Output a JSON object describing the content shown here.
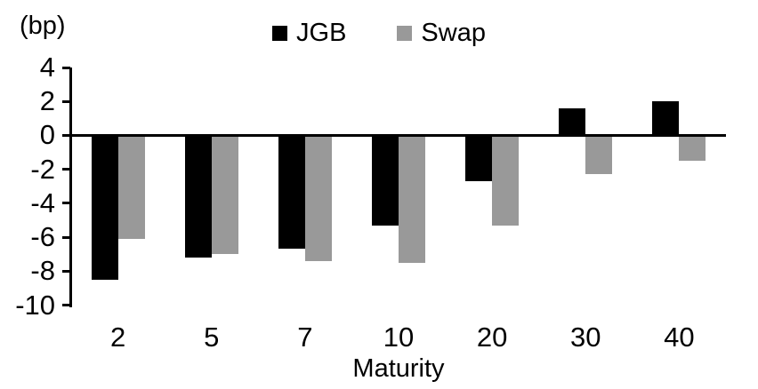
{
  "chart_data": {
    "type": "bar",
    "title": "",
    "unit_label": "(bp)",
    "xlabel": "Maturity",
    "categories": [
      "2",
      "5",
      "7",
      "10",
      "20",
      "30",
      "40"
    ],
    "series": [
      {
        "name": "JGB",
        "color": "#000000",
        "values": [
          -8.5,
          -7.2,
          -6.7,
          -5.3,
          -2.7,
          1.6,
          2.0
        ]
      },
      {
        "name": "Swap",
        "color": "#999999",
        "values": [
          -6.1,
          -7.0,
          -7.4,
          -7.5,
          -5.3,
          -2.3,
          -1.5
        ]
      }
    ],
    "ylim": [
      -10,
      4
    ],
    "yticks": [
      4,
      2,
      0,
      -2,
      -4,
      -6,
      -8,
      -10
    ],
    "legend_position": "top",
    "grid": false,
    "axis_color": "#000000",
    "background_color": "#ffffff"
  }
}
